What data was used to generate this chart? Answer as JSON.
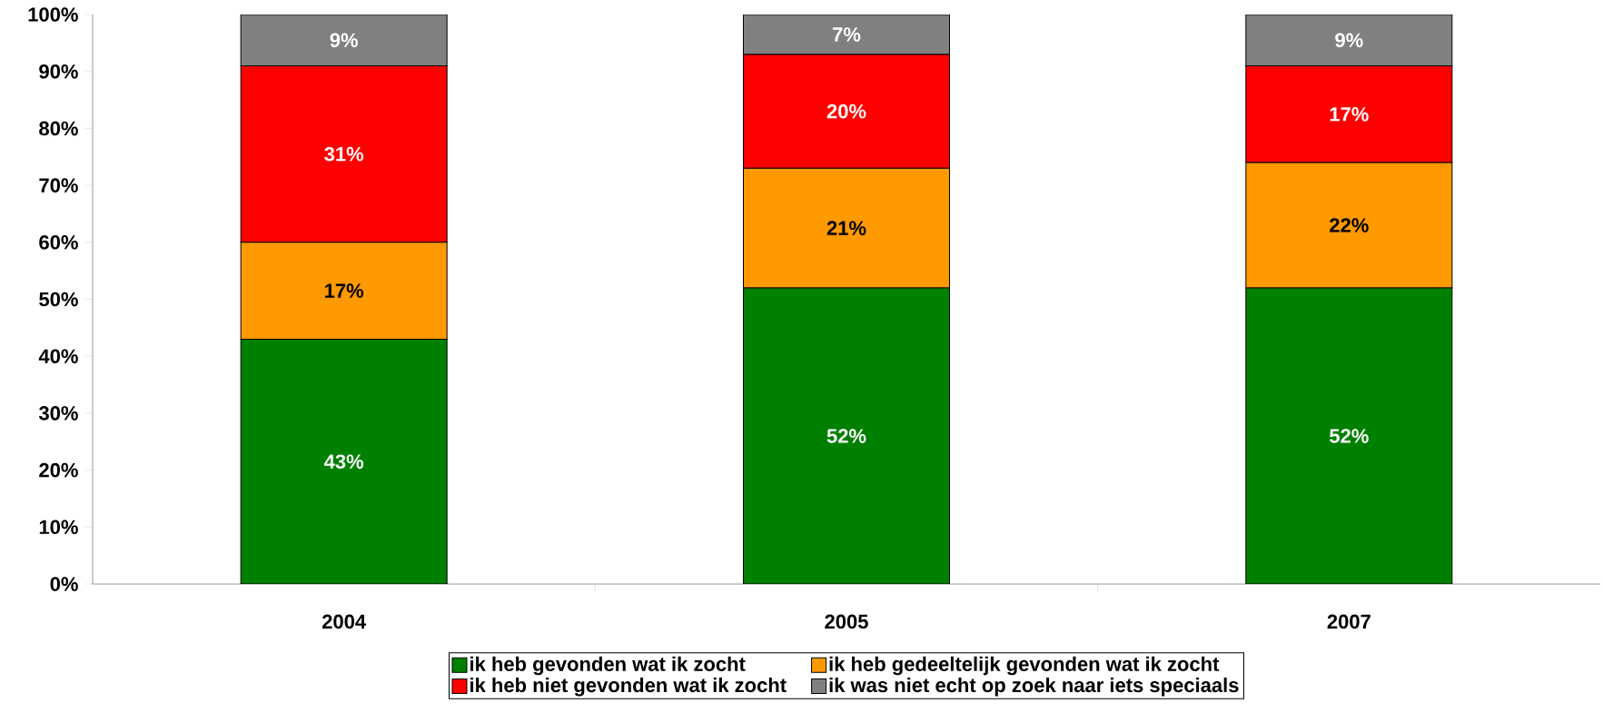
{
  "chart_data": {
    "type": "bar",
    "stacked": true,
    "categories": [
      "2004",
      "2005",
      "2007"
    ],
    "series": [
      {
        "name": "ik heb gevonden wat ik zocht",
        "color": "#008000",
        "values": [
          43,
          52,
          52
        ],
        "value_labels": [
          "43%",
          "52%",
          "52%"
        ]
      },
      {
        "name": "ik heb gedeeltelijk gevonden wat ik zocht",
        "color": "#ff9900",
        "values": [
          17,
          21,
          22
        ],
        "value_labels": [
          "17%",
          "21%",
          "22%"
        ]
      },
      {
        "name": "ik heb niet gevonden wat ik zocht",
        "color": "#ff0000",
        "values": [
          31,
          20,
          17
        ],
        "value_labels": [
          "31%",
          "20%",
          "17%"
        ]
      },
      {
        "name": "ik was niet echt op zoek naar iets speciaals",
        "color": "#808080",
        "values": [
          9,
          7,
          9
        ],
        "value_labels": [
          "9%",
          "7%",
          "9%"
        ]
      }
    ],
    "ylim": [
      0,
      100
    ],
    "yticks": [
      {
        "value": 0,
        "label": "0%"
      },
      {
        "value": 10,
        "label": "10%"
      },
      {
        "value": 20,
        "label": "20%"
      },
      {
        "value": 30,
        "label": "30%"
      },
      {
        "value": 40,
        "label": "40%"
      },
      {
        "value": 50,
        "label": "50%"
      },
      {
        "value": 60,
        "label": "60%"
      },
      {
        "value": 70,
        "label": "70%"
      },
      {
        "value": 80,
        "label": "80%"
      },
      {
        "value": 90,
        "label": "90%"
      },
      {
        "value": 100,
        "label": "100%"
      }
    ],
    "legend": "bottom",
    "grid": false
  }
}
